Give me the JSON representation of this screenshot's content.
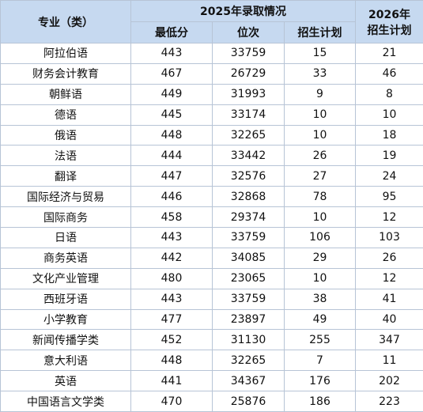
{
  "header": {
    "major": "专业（类）",
    "group_2025": "2025年录取情况",
    "columns": [
      "最低分",
      "位次",
      "招生计划"
    ],
    "plan_2026": [
      "2026年",
      "招生计划"
    ]
  },
  "table": {
    "rows": [
      [
        "阿拉伯语",
        443,
        33759,
        15,
        21
      ],
      [
        "财务会计教育",
        467,
        26729,
        33,
        46
      ],
      [
        "朝鲜语",
        449,
        31993,
        9,
        8
      ],
      [
        "德语",
        445,
        33174,
        10,
        10
      ],
      [
        "俄语",
        448,
        32265,
        10,
        18
      ],
      [
        "法语",
        444,
        33442,
        26,
        19
      ],
      [
        "翻译",
        447,
        32576,
        27,
        24
      ],
      [
        "国际经济与贸易",
        446,
        32868,
        78,
        95
      ],
      [
        "国际商务",
        458,
        29374,
        10,
        12
      ],
      [
        "日语",
        443,
        33759,
        106,
        103
      ],
      [
        "商务英语",
        442,
        34085,
        29,
        26
      ],
      [
        "文化产业管理",
        480,
        23065,
        10,
        12
      ],
      [
        "西班牙语",
        443,
        33759,
        38,
        41
      ],
      [
        "小学教育",
        477,
        23897,
        49,
        40
      ],
      [
        "新闻传播学类",
        452,
        31130,
        255,
        347
      ],
      [
        "意大利语",
        448,
        32265,
        7,
        11
      ],
      [
        "英语",
        441,
        34367,
        176,
        202
      ],
      [
        "中国语言文学类",
        470,
        25876,
        186,
        223
      ]
    ]
  }
}
